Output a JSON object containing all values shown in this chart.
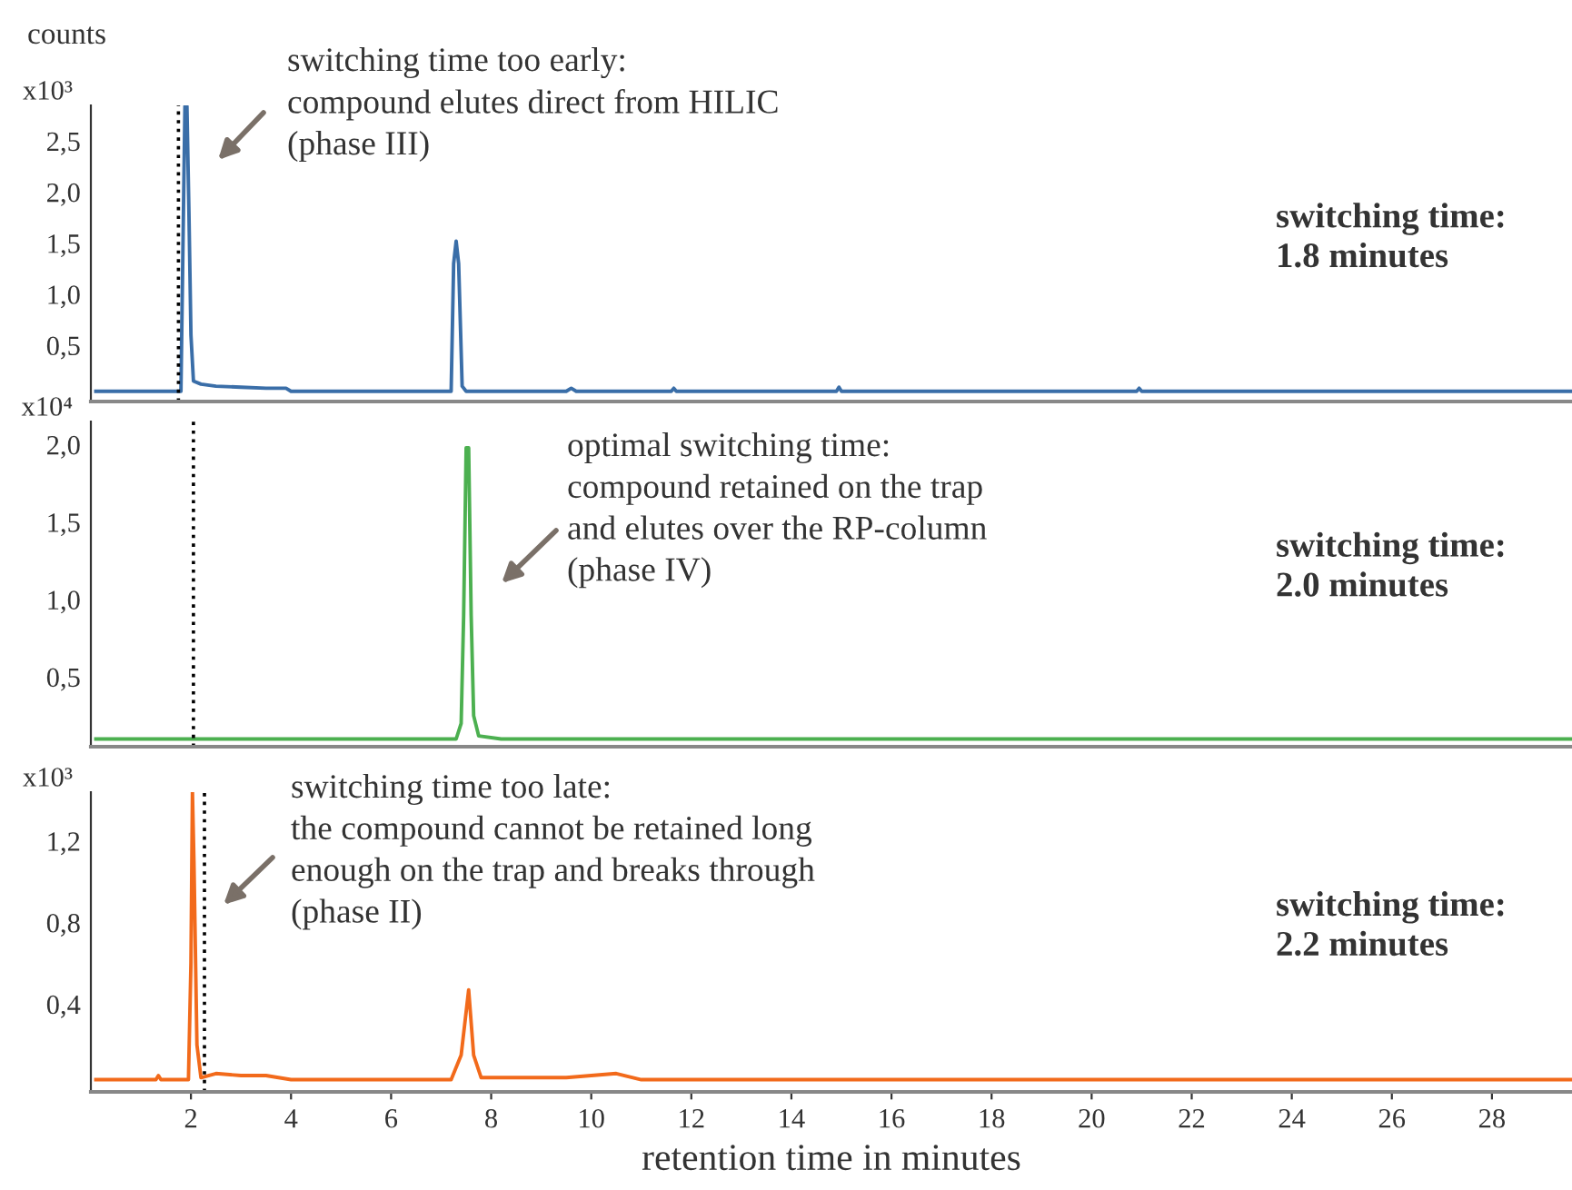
{
  "chart_data": [
    {
      "type": "line",
      "title": "counts",
      "ylabel": "x10³",
      "xlim": [
        0,
        29.6
      ],
      "ylim": [
        -0.05,
        2.85
      ],
      "tick_labels": "y",
      "yticks": [
        {
          "value": 0.5,
          "label": "0,5"
        },
        {
          "value": 1.0,
          "label": "1,0"
        },
        {
          "value": 1.5,
          "label": "1,5"
        },
        {
          "value": 2.0,
          "label": "2,0"
        },
        {
          "value": 2.5,
          "label": "2,5"
        }
      ],
      "series": [
        {
          "color": "#3a6ea8",
          "x": [
            0.1,
            1.8,
            1.85,
            1.88,
            1.92,
            1.96,
            2.0,
            2.05,
            2.2,
            2.5,
            3,
            3.5,
            3.9,
            4.0,
            7.2,
            7.25,
            7.3,
            7.35,
            7.42,
            7.5,
            9.5,
            9.6,
            9.7,
            11.6,
            11.65,
            11.7,
            14.9,
            14.95,
            15.0,
            20.9,
            20.95,
            21,
            29.6
          ],
          "values": [
            0.05,
            0.05,
            1.8,
            2.84,
            2.84,
            1.8,
            0.6,
            0.15,
            0.12,
            0.1,
            0.09,
            0.08,
            0.08,
            0.05,
            0.05,
            1.3,
            1.52,
            1.3,
            0.1,
            0.05,
            0.05,
            0.08,
            0.05,
            0.05,
            0.08,
            0.05,
            0.05,
            0.09,
            0.05,
            0.05,
            0.08,
            0.05,
            0.05
          ]
        }
      ],
      "ref_lines": [
        {
          "axis": "x",
          "value": 1.75,
          "color": "#000000",
          "line_style": "dotted"
        }
      ],
      "annotations": [
        "switching time too early:\ncompound elutes direct from HILIC\n(phase III)",
        "switching time:\n1.8 minutes"
      ]
    },
    {
      "type": "line",
      "ylabel": "x10⁴",
      "xlim": [
        0,
        29.6
      ],
      "ylim": [
        0.05,
        2.15
      ],
      "tick_labels": "y",
      "yticks": [
        {
          "value": 0.5,
          "label": "0,5"
        },
        {
          "value": 1.0,
          "label": "1,0"
        },
        {
          "value": 1.5,
          "label": "1,5"
        },
        {
          "value": 2.0,
          "label": "2,0"
        }
      ],
      "series": [
        {
          "color": "#4cb050",
          "x": [
            0.1,
            7.3,
            7.4,
            7.45,
            7.5,
            7.55,
            7.6,
            7.65,
            7.75,
            8.2,
            29.6
          ],
          "values": [
            0.1,
            0.1,
            0.2,
            0.9,
            1.98,
            1.98,
            0.9,
            0.25,
            0.12,
            0.1,
            0.1
          ]
        }
      ],
      "ref_lines": [
        {
          "axis": "x",
          "value": 2.05,
          "color": "#000000",
          "line_style": "dotted"
        }
      ],
      "annotations": [
        "optimal switching time:\ncompound retained on the trap\nand elutes over the RP-column\n(phase IV)",
        "switching time:\n2.0 minutes"
      ]
    },
    {
      "type": "line",
      "ylabel": "x10³",
      "xlabel": "retention time in minutes",
      "xlim": [
        0,
        29.6
      ],
      "ylim": [
        -0.03,
        1.44
      ],
      "xticks": [
        2,
        4,
        6,
        8,
        10,
        12,
        14,
        16,
        18,
        20,
        22,
        24,
        26,
        28
      ],
      "yticks": [
        {
          "value": 0.4,
          "label": "0,4"
        },
        {
          "value": 0.8,
          "label": "0,8"
        },
        {
          "value": 1.2,
          "label": "1,2"
        }
      ],
      "series": [
        {
          "color": "#f26a1b",
          "x": [
            0.1,
            1.3,
            1.35,
            1.4,
            1.95,
            2.0,
            2.03,
            2.06,
            2.12,
            2.2,
            2.5,
            3,
            3.5,
            4.0,
            7.2,
            7.4,
            7.55,
            7.65,
            7.8,
            9.5,
            10.5,
            11,
            28,
            29.6
          ],
          "values": [
            0.03,
            0.03,
            0.05,
            0.03,
            0.03,
            0.6,
            1.44,
            1.1,
            0.2,
            0.04,
            0.06,
            0.05,
            0.05,
            0.03,
            0.03,
            0.15,
            0.47,
            0.15,
            0.04,
            0.04,
            0.06,
            0.03,
            0.03,
            0.03
          ]
        }
      ],
      "ref_lines": [
        {
          "axis": "x",
          "value": 2.27,
          "color": "#000000",
          "line_style": "dotted"
        }
      ],
      "annotations": [
        "switching time too late:\nthe compound cannot be retained long\nenough on the trap and breaks through\n(phase II)",
        "switching time:\n2.2 minutes"
      ]
    }
  ]
}
